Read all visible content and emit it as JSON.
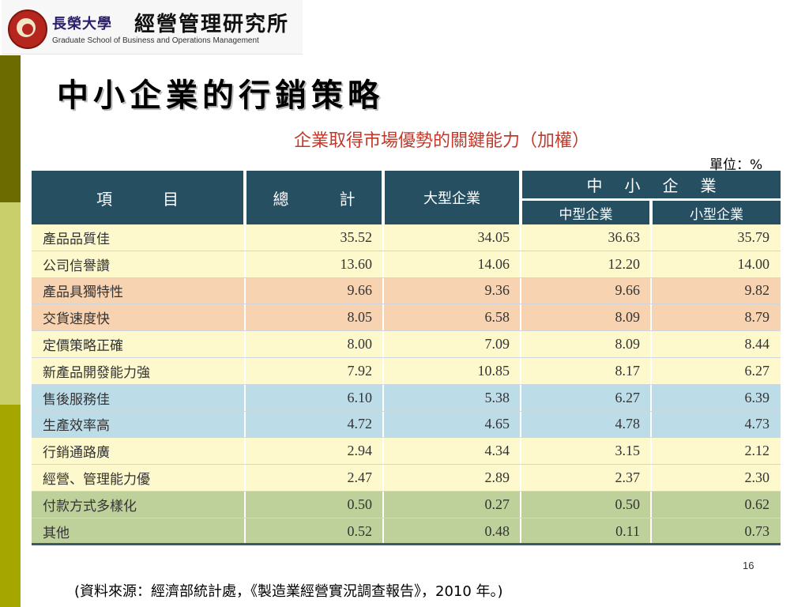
{
  "logo": {
    "school_cn": "長榮大學",
    "institute_cn": "經營管理研究所",
    "english": "Graduate School of Business and Operations Management"
  },
  "slide": {
    "title": "中小企業的行銷策略",
    "page_number": "16",
    "source": "(資料來源：經濟部統計處，《製造業經營實況調查報告》，2010 年。)"
  },
  "table": {
    "title": "企業取得市場優勢的關鍵能力（加權）",
    "unit": "單位：%",
    "headers": {
      "item": "項　目",
      "total": "總　計",
      "large": "大型企業",
      "sme": "中小企業",
      "medium": "中型企業",
      "small": "小型企業"
    },
    "rows": [
      {
        "item": "產品品質佳",
        "total": "35.52",
        "large": "34.05",
        "medium": "36.63",
        "small": "35.79",
        "color": "#fdf9cc"
      },
      {
        "item": "公司信譽讚",
        "total": "13.60",
        "large": "14.06",
        "medium": "12.20",
        "small": "14.00",
        "color": "#fdf9cc"
      },
      {
        "item": "產品具獨特性",
        "total": "9.66",
        "large": "9.36",
        "medium": "9.66",
        "small": "9.82",
        "color": "#f8d3b1"
      },
      {
        "item": "交貨速度快",
        "total": "8.05",
        "large": "6.58",
        "medium": "8.09",
        "small": "8.79",
        "color": "#f8d3b1"
      },
      {
        "item": "定價策略正確",
        "total": "8.00",
        "large": "7.09",
        "medium": "8.09",
        "small": "8.44",
        "color": "#fdf9cc"
      },
      {
        "item": "新產品開發能力強",
        "total": "7.92",
        "large": "10.85",
        "medium": "8.17",
        "small": "6.27",
        "color": "#fdf9cc"
      },
      {
        "item": "售後服務佳",
        "total": "6.10",
        "large": "5.38",
        "medium": "6.27",
        "small": "6.39",
        "color": "#bcdce8"
      },
      {
        "item": "生產效率高",
        "total": "4.72",
        "large": "4.65",
        "medium": "4.78",
        "small": "4.73",
        "color": "#bcdce8"
      },
      {
        "item": "行銷通路廣",
        "total": "2.94",
        "large": "4.34",
        "medium": "3.15",
        "small": "2.12",
        "color": "#fdf9cc"
      },
      {
        "item": "經營、管理能力優",
        "total": "2.47",
        "large": "2.89",
        "medium": "2.37",
        "small": "2.30",
        "color": "#fdf9cc"
      },
      {
        "item": "付款方式多樣化",
        "total": "0.50",
        "large": "0.27",
        "medium": "0.50",
        "small": "0.62",
        "color": "#bfd19a"
      },
      {
        "item": "其他",
        "total": "0.52",
        "large": "0.48",
        "medium": "0.11",
        "small": "0.73",
        "color": "#bfd19a"
      }
    ]
  },
  "colors": {
    "header_bg": "#274f62",
    "title_red": "#c0392b",
    "bar_dark": "#6b6b00",
    "bar_light": "#c9cf6a",
    "bar_mid": "#a6a600"
  }
}
